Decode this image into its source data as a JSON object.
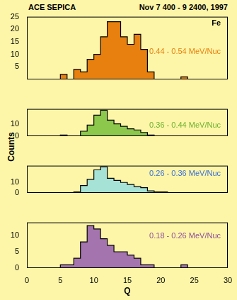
{
  "chart_data": [
    {
      "type": "histogram",
      "title": "ACE SEPICA",
      "subtitle": "Nov 7 400 - 9 2400, 1997",
      "annotations": [
        "Fe",
        "0.44 - 0.54 MeV/Nuc"
      ],
      "color": "#e8800f",
      "bins": [
        5,
        6,
        7,
        8,
        9,
        10,
        11,
        12,
        13,
        14,
        15,
        16,
        17,
        18,
        19,
        20,
        21,
        22,
        23,
        24,
        25,
        26
      ],
      "values": [
        0,
        2,
        0,
        4,
        3,
        8,
        10,
        17,
        23,
        23,
        17,
        14,
        18,
        12,
        3,
        0,
        0,
        0,
        0,
        1,
        0
      ],
      "xlim": [
        0,
        30
      ],
      "xticks": [
        0,
        5,
        10,
        15,
        20,
        25,
        30
      ],
      "ylim": [
        0,
        25
      ],
      "yticks": [
        5,
        10,
        15,
        20,
        25
      ]
    },
    {
      "type": "histogram",
      "y_label": "Counts",
      "annotations": [
        "0.36 - 0.44 MeV/Nuc"
      ],
      "color": "#8cc84b",
      "bins": [
        5,
        6,
        7,
        8,
        9,
        10,
        11,
        12,
        13,
        14,
        15,
        16,
        17,
        18,
        19,
        20,
        21
      ],
      "values": [
        0,
        1,
        0,
        0,
        4,
        9,
        17,
        21,
        13,
        10,
        8,
        6,
        5,
        3,
        1,
        0
      ],
      "xlim": [
        0,
        30
      ],
      "xticks": [
        0,
        5,
        10,
        15,
        20,
        25,
        30
      ],
      "ylim": [
        0,
        22
      ],
      "yticks": [
        0,
        10
      ]
    },
    {
      "type": "histogram",
      "annotations": [
        "0.26 - 0.36 MeV/Nuc"
      ],
      "color": "#a6e2d6",
      "bins": [
        7,
        8,
        9,
        10,
        11,
        12,
        13,
        14,
        15,
        16,
        17,
        18,
        19,
        20,
        21,
        22,
        23
      ],
      "values": [
        0,
        1,
        7,
        13,
        22,
        25,
        14,
        12,
        10,
        8,
        6,
        5,
        2,
        1,
        1,
        0
      ],
      "xlim": [
        0,
        30
      ],
      "xticks": [
        0,
        5,
        10,
        15,
        20,
        25,
        30
      ],
      "ylim": [
        0,
        26
      ],
      "yticks": [
        0,
        10
      ]
    },
    {
      "type": "histogram",
      "x_label": "Q",
      "annotations": [
        "0.18 - 0.26 MeV/Nuc"
      ],
      "color": "#a474ae",
      "bins": [
        5,
        6,
        7,
        8,
        9,
        10,
        11,
        12,
        13,
        14,
        15,
        16,
        17,
        18,
        19,
        20,
        21,
        22,
        23,
        24,
        25,
        26
      ],
      "values": [
        0,
        1,
        1,
        3,
        8,
        13,
        12,
        9,
        7,
        5,
        5,
        4,
        3,
        1,
        1,
        0,
        0,
        0,
        0,
        1,
        0
      ],
      "xlim": [
        0,
        30
      ],
      "xticks": [
        0,
        5,
        10,
        15,
        20,
        25,
        30
      ],
      "ylim": [
        0,
        14
      ],
      "yticks": [
        0,
        5,
        10
      ]
    }
  ]
}
